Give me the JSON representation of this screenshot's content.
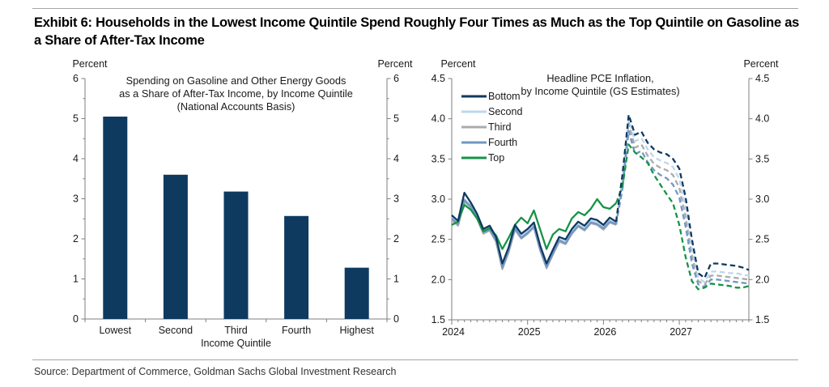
{
  "header": {
    "title": "Exhibit 6: Households in the Lowest Income Quintile Spend Roughly Four Times as Much as the Top Quintile on Gasoline as a Share of After-Tax Income"
  },
  "footer": {
    "source": "Source: Department of Commerce, Goldman Sachs Global Investment Research"
  },
  "colors": {
    "navy": "#0e3a60",
    "light_blue": "#bdd7ee",
    "gray": "#ababab",
    "steel_blue": "#7297c5",
    "green": "#169347",
    "axis": "#7f7f7f",
    "divider": "#a6a6a6"
  },
  "chart_data": [
    {
      "type": "bar",
      "title_lines": [
        "Spending on Gasoline and Other Energy Goods",
        "as a Share of After-Tax Income, by Income Quintile",
        "(National Accounts Basis)"
      ],
      "unit_label": "Percent",
      "categories": [
        "Lowest",
        "Second",
        "Third",
        "Fourth",
        "Highest"
      ],
      "values": [
        5.05,
        3.6,
        3.18,
        2.57,
        1.28
      ],
      "xlabel": "Income Quintile",
      "ylabel": "Percent",
      "ylim": [
        0,
        6
      ],
      "ytick_step": 1,
      "bar_color": "#0e3a60",
      "legend_position": "none",
      "grid": false
    },
    {
      "type": "line",
      "title_lines": [
        "Headline PCE Inflation,",
        "by Income Quintile (GS Estimates)"
      ],
      "unit_label": "Percent",
      "ylabel": "Percent",
      "x_frequency": "monthly",
      "x_range_note": "Jan 2024 - Dec 2027",
      "x_tick_labels": [
        "2024",
        "2025",
        "2026",
        "2027"
      ],
      "ylim": [
        1.5,
        4.5
      ],
      "ytick_step": 0.5,
      "forecast_start_index": 26,
      "forecast_style": "dashed",
      "legend_position": "top-left",
      "grid": false,
      "series": [
        {
          "name": "Bottom",
          "color": "#0e3a60",
          "values": [
            2.8,
            2.73,
            3.08,
            2.96,
            2.82,
            2.63,
            2.67,
            2.53,
            2.2,
            2.4,
            2.68,
            2.57,
            2.63,
            2.71,
            2.42,
            2.2,
            2.37,
            2.53,
            2.5,
            2.63,
            2.72,
            2.67,
            2.76,
            2.74,
            2.68,
            2.77,
            2.72,
            3.3,
            4.05,
            3.8,
            3.84,
            3.7,
            3.62,
            3.58,
            3.56,
            3.5,
            3.38,
            3.02,
            2.5,
            2.08,
            2.02,
            2.2,
            2.2,
            2.19,
            2.18,
            2.17,
            2.15,
            2.12
          ]
        },
        {
          "name": "Second",
          "color": "#bdd7ee",
          "values": [
            2.77,
            2.7,
            3.0,
            2.92,
            2.78,
            2.6,
            2.64,
            2.5,
            2.17,
            2.37,
            2.65,
            2.54,
            2.6,
            2.68,
            2.39,
            2.17,
            2.34,
            2.5,
            2.47,
            2.6,
            2.69,
            2.64,
            2.73,
            2.71,
            2.65,
            2.74,
            2.7,
            3.25,
            4.0,
            3.72,
            3.76,
            3.62,
            3.52,
            3.48,
            3.45,
            3.4,
            3.25,
            2.9,
            2.4,
            2.02,
            1.97,
            2.1,
            2.1,
            2.09,
            2.08,
            2.08,
            2.06,
            2.05
          ]
        },
        {
          "name": "Third",
          "color": "#ababab",
          "values": [
            2.74,
            2.67,
            2.97,
            2.9,
            2.76,
            2.57,
            2.61,
            2.47,
            2.13,
            2.34,
            2.62,
            2.51,
            2.57,
            2.65,
            2.36,
            2.14,
            2.31,
            2.47,
            2.44,
            2.57,
            2.66,
            2.61,
            2.7,
            2.68,
            2.62,
            2.71,
            2.68,
            3.2,
            3.95,
            3.64,
            3.68,
            3.54,
            3.44,
            3.39,
            3.36,
            3.3,
            3.14,
            2.78,
            2.3,
            1.98,
            1.94,
            2.05,
            2.05,
            2.04,
            2.03,
            2.02,
            2.01,
            2.0
          ]
        },
        {
          "name": "Fourth",
          "color": "#7297c5",
          "values": [
            2.76,
            2.69,
            2.99,
            2.91,
            2.77,
            2.59,
            2.62,
            2.49,
            2.15,
            2.36,
            2.64,
            2.52,
            2.58,
            2.66,
            2.37,
            2.16,
            2.32,
            2.49,
            2.45,
            2.58,
            2.67,
            2.62,
            2.71,
            2.69,
            2.64,
            2.72,
            2.69,
            3.12,
            3.85,
            3.56,
            3.6,
            3.46,
            3.36,
            3.3,
            3.26,
            3.18,
            3.02,
            2.66,
            2.2,
            1.94,
            1.91,
            2.0,
            2.0,
            1.99,
            1.98,
            1.97,
            1.96,
            1.95
          ]
        },
        {
          "name": "Top",
          "color": "#169347",
          "values": [
            2.68,
            2.72,
            2.93,
            2.87,
            2.76,
            2.6,
            2.64,
            2.55,
            2.38,
            2.52,
            2.68,
            2.77,
            2.7,
            2.86,
            2.62,
            2.38,
            2.56,
            2.63,
            2.6,
            2.76,
            2.84,
            2.8,
            2.88,
            3.0,
            2.9,
            2.88,
            2.95,
            3.15,
            3.68,
            3.58,
            3.52,
            3.45,
            3.3,
            3.18,
            3.06,
            2.95,
            2.68,
            2.28,
            1.98,
            1.88,
            1.9,
            1.95,
            1.94,
            1.93,
            1.92,
            1.9,
            1.9,
            1.92
          ]
        }
      ]
    }
  ]
}
